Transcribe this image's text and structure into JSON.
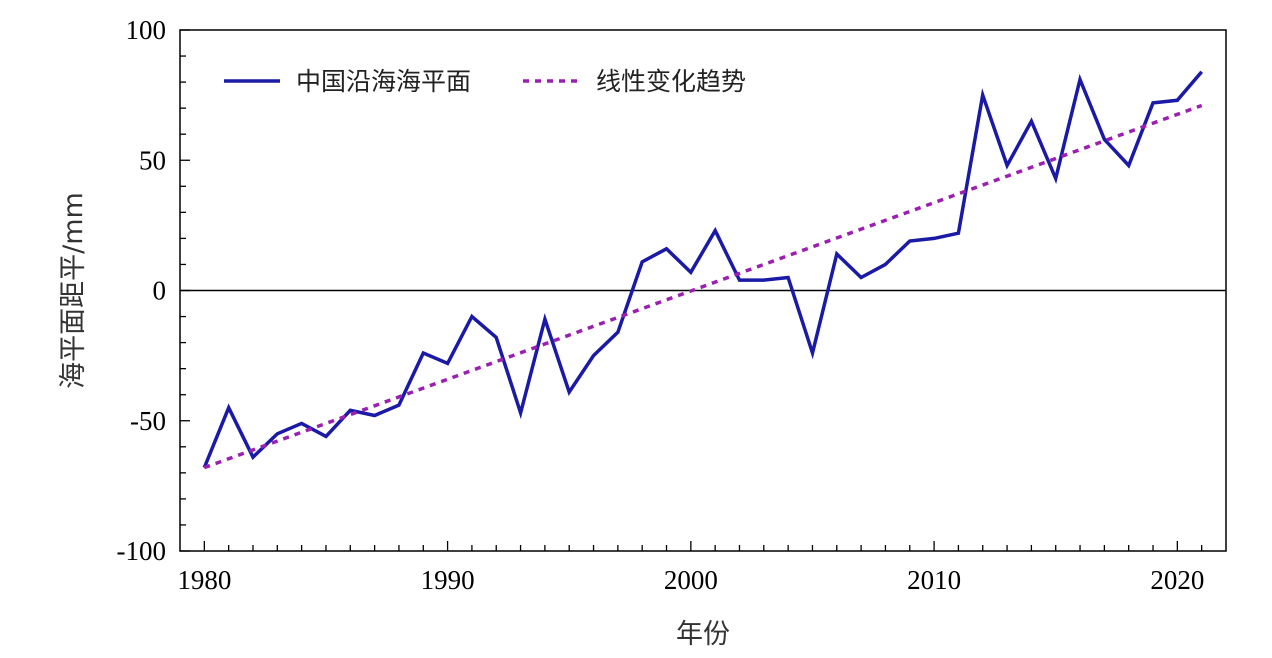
{
  "chart_data": {
    "type": "line",
    "title": "",
    "xlabel": "年份",
    "ylabel": "海平面距平/mm",
    "xlim": [
      1979,
      2022
    ],
    "ylim": [
      -100,
      100
    ],
    "xticks": [
      1980,
      1990,
      2000,
      2010,
      2020
    ],
    "yticks": [
      -100,
      -50,
      0,
      50,
      100
    ],
    "reference_line_y": 0,
    "legend_position": "top-left",
    "grid": false,
    "series": [
      {
        "name": "中国沿海海平面",
        "style": "solid",
        "color": "#1a1aa6",
        "x": [
          1980,
          1981,
          1982,
          1983,
          1984,
          1985,
          1986,
          1987,
          1988,
          1989,
          1990,
          1991,
          1992,
          1993,
          1994,
          1995,
          1996,
          1997,
          1998,
          1999,
          2000,
          2001,
          2002,
          2003,
          2004,
          2005,
          2006,
          2007,
          2008,
          2009,
          2010,
          2011,
          2012,
          2013,
          2014,
          2015,
          2016,
          2017,
          2018,
          2019,
          2020,
          2021
        ],
        "values": [
          -68,
          -45,
          -64,
          -55,
          -51,
          -56,
          -46,
          -48,
          -44,
          -24,
          -28,
          -10,
          -18,
          -47,
          -11,
          -39,
          -25,
          -16,
          11,
          16,
          7,
          23,
          4,
          4,
          5,
          -24,
          14,
          5,
          10,
          19,
          20,
          22,
          75,
          48,
          65,
          43,
          81,
          58,
          48,
          72,
          73,
          84
        ]
      },
      {
        "name": "线性变化趋势",
        "style": "dashed",
        "color": "#9b1fb0",
        "x": [
          1980,
          2021
        ],
        "values": [
          -68,
          71
        ]
      }
    ]
  }
}
